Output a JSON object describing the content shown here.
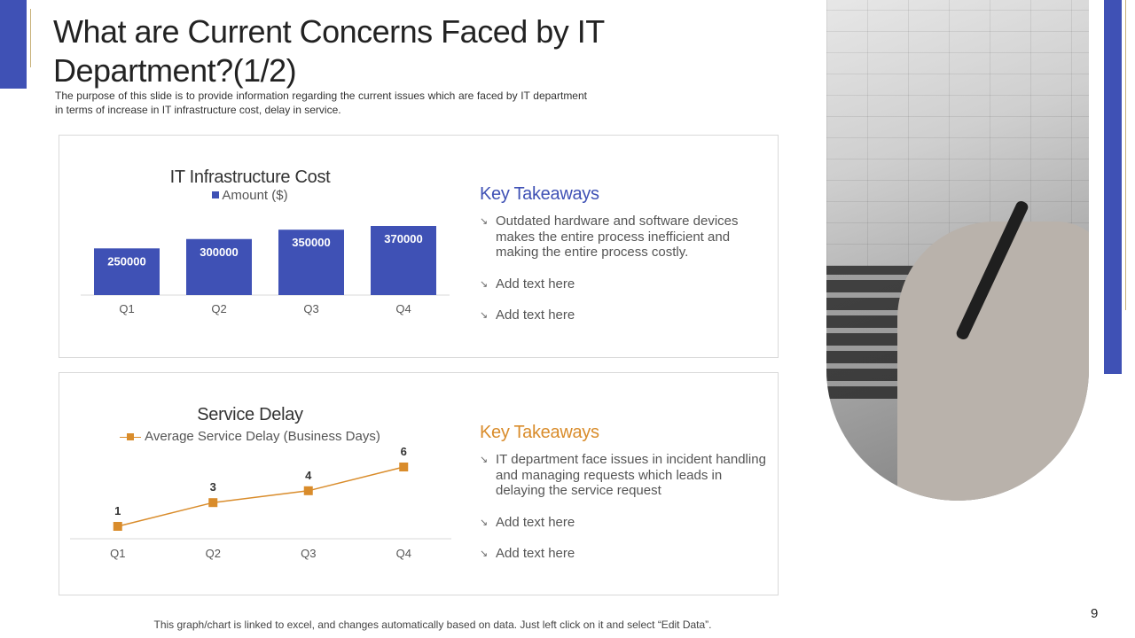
{
  "title": "What are Current Concerns Faced by IT Department?(1/2)",
  "subtitle": "The purpose of this slide is to provide information regarding the current issues which are faced by IT department in terms of increase in IT infrastructure cost, delay in service.",
  "top_panel": {
    "takeaways_title": "Key Takeaways",
    "takeaways_color": "#3f51b5",
    "bullets": [
      "Outdated hardware and software devices makes the entire process inefficient and making the entire process costly.",
      "Add text here",
      "Add text here"
    ]
  },
  "bottom_panel": {
    "takeaways_title": "Key Takeaways",
    "takeaways_color": "#d98c2b",
    "bullets": [
      "IT department face issues in incident handling and managing requests which leads in delaying the service request",
      "Add text here",
      "Add text here"
    ]
  },
  "bullet_icon": "arrow-bullet-icon",
  "chart_data": [
    {
      "type": "bar",
      "title": "IT Infrastructure Cost",
      "categories": [
        "Q1",
        "Q2",
        "Q3",
        "Q4"
      ],
      "series": [
        {
          "name": "Amount ($)",
          "values": [
            250000,
            300000,
            350000,
            370000
          ],
          "color": "#3f51b5"
        }
      ],
      "ylim": [
        0,
        370000
      ],
      "data_labels": true,
      "grid": false,
      "legend_position": "top"
    },
    {
      "type": "line",
      "title": "Service Delay",
      "categories": [
        "Q1",
        "Q2",
        "Q3",
        "Q4"
      ],
      "series": [
        {
          "name": "Average Service Delay (Business Days)",
          "values": [
            1,
            3,
            4,
            6
          ],
          "color": "#d98c2b"
        }
      ],
      "data_labels": true,
      "grid": false,
      "legend_position": "top"
    }
  ],
  "footer": "This graph/chart is linked to excel, and changes automatically based on data. Just left click on it and select “Edit Data”.",
  "page_number": "9"
}
